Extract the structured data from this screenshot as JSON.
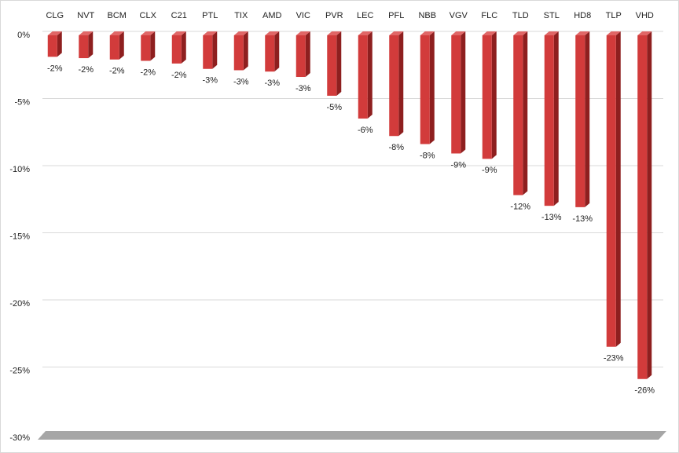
{
  "chart_data": {
    "type": "bar",
    "categories": [
      "CLG",
      "NVT",
      "BCM",
      "CLX",
      "C21",
      "PTL",
      "TIX",
      "AMD",
      "VIC",
      "PVR",
      "LEC",
      "PFL",
      "NBB",
      "VGV",
      "FLC",
      "TLD",
      "STL",
      "HD8",
      "TLP",
      "VHD"
    ],
    "values": [
      -1.6,
      -1.7,
      -1.8,
      -1.9,
      -2.1,
      -2.5,
      -2.6,
      -2.7,
      -3.1,
      -4.5,
      -6.2,
      -7.5,
      -8.1,
      -8.8,
      -9.2,
      -11.9,
      -12.7,
      -12.8,
      -23.2,
      -25.6
    ],
    "value_labels": [
      "-2%",
      "-2%",
      "-2%",
      "-2%",
      "-2%",
      "-3%",
      "-3%",
      "-3%",
      "-3%",
      "-5%",
      "-6%",
      "-8%",
      "-8%",
      "-9%",
      "-9%",
      "-12%",
      "-13%",
      "-13%",
      "-23%",
      "-26%"
    ],
    "color": "#d23b3b",
    "ylim": [
      -30,
      0
    ],
    "yticks": [
      {
        "value": 0,
        "label": "0%"
      },
      {
        "value": -5,
        "label": "-5%"
      },
      {
        "value": -10,
        "label": "-10%"
      },
      {
        "value": -15,
        "label": "-15%"
      },
      {
        "value": -20,
        "label": "-20%"
      },
      {
        "value": -25,
        "label": "-25%"
      },
      {
        "value": -30,
        "label": "-30%"
      }
    ],
    "grid": true
  }
}
